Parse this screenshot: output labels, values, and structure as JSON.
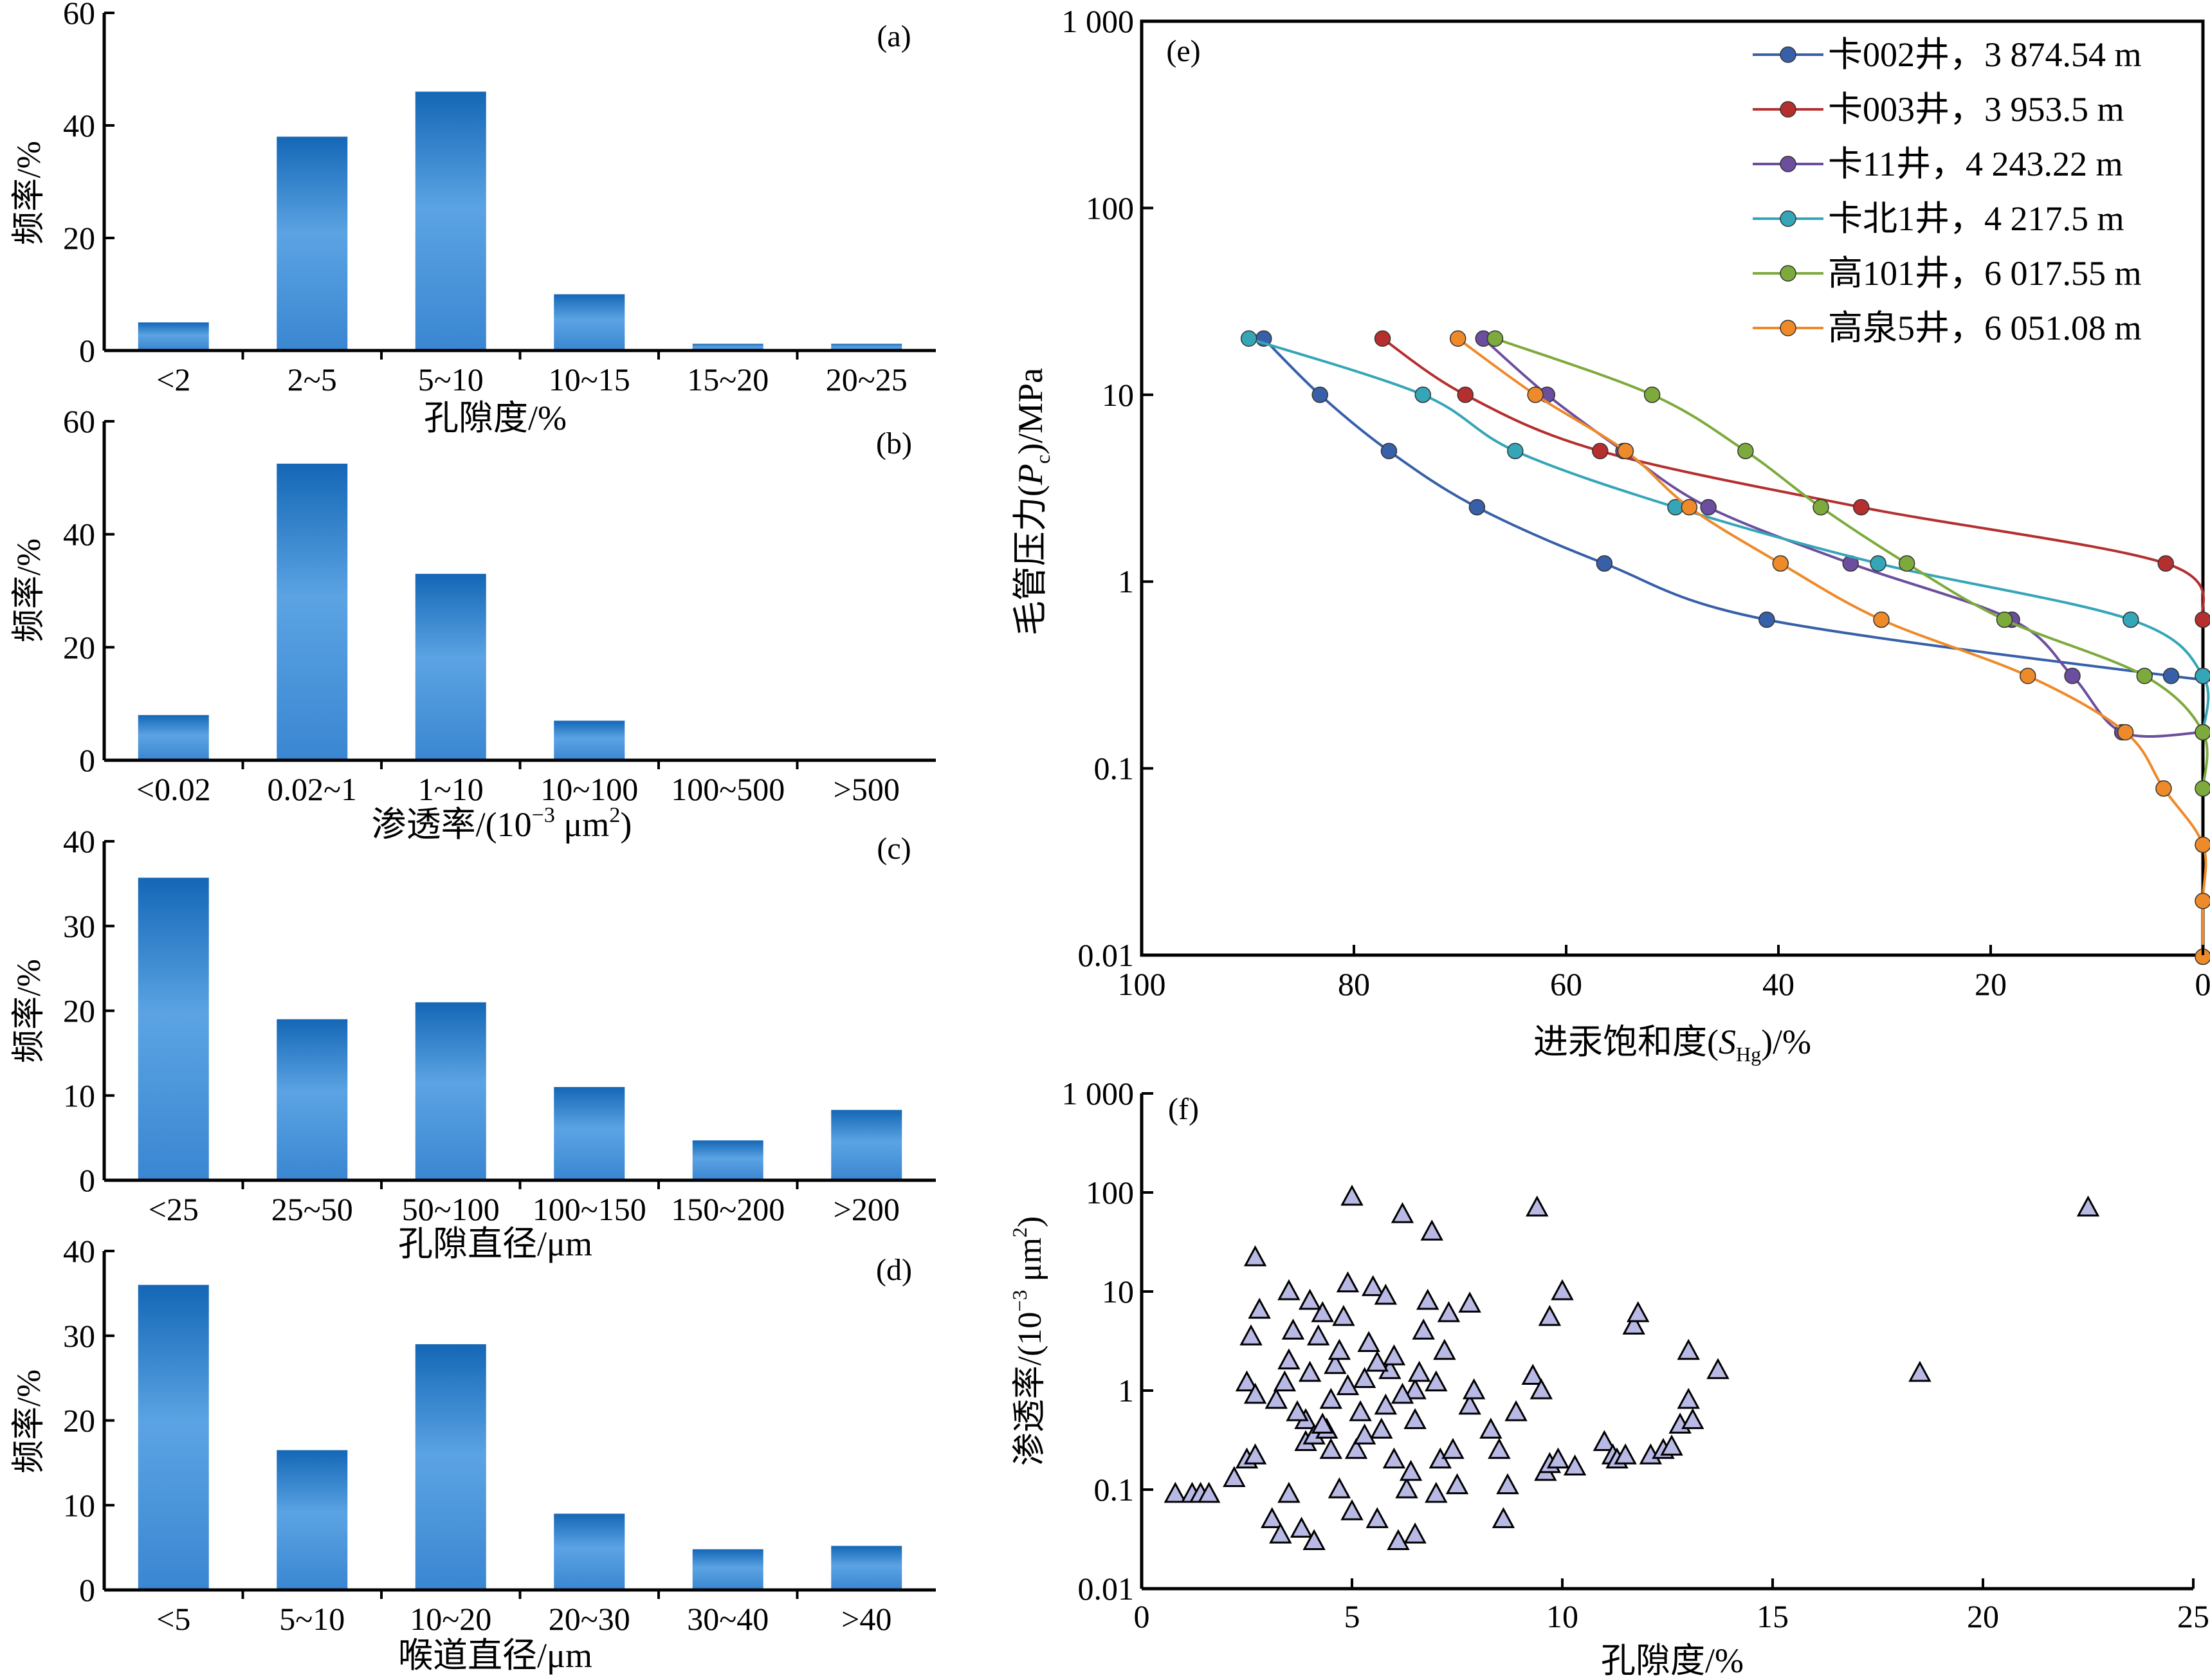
{
  "colors": {
    "bar_top": "#1467b6",
    "bar_mid": "#5ba3e3",
    "bar_bottom": "#3a86d1",
    "scatter_fill": "#b9b9e6",
    "series": [
      "#3760a8",
      "#b52f2f",
      "#6b4e9e",
      "#35a5b8",
      "#7daa3c",
      "#ee8a2a"
    ]
  },
  "chart_data": [
    {
      "id": "a",
      "type": "bar",
      "tag": "(a)",
      "categories": [
        "<2",
        "2~5",
        "5~10",
        "10~15",
        "15~20",
        "20~25"
      ],
      "values": [
        5,
        38,
        46,
        10,
        1.2,
        1.2
      ],
      "xlabel": "孔隙度/%",
      "ylabel": "频率/%",
      "ylim": [
        0,
        60
      ],
      "yticks": [
        "0",
        "20",
        "40",
        "60"
      ]
    },
    {
      "id": "b",
      "type": "bar",
      "tag": "(b)",
      "categories": [
        "<0.02",
        "0.02~1",
        "1~10",
        "10~100",
        "100~500",
        ">500"
      ],
      "values": [
        8,
        52.5,
        33,
        7,
        0,
        0
      ],
      "xlabel_main": "渗透率/(10",
      "xlabel_sup1": "−3",
      "xlabel_mid": " μm",
      "xlabel_sup2": "2",
      "xlabel_end": ")",
      "ylabel": "频率/%",
      "ylim": [
        0,
        60
      ],
      "yticks": [
        "0",
        "20",
        "40",
        "60"
      ]
    },
    {
      "id": "c",
      "type": "bar",
      "tag": "(c)",
      "categories": [
        "<25",
        "25~50",
        "50~100",
        "100~150",
        "150~200",
        ">200"
      ],
      "values": [
        35.7,
        19,
        21,
        11,
        4.7,
        8.3
      ],
      "xlabel": "孔隙直径/μm",
      "ylabel": "频率/%",
      "ylim": [
        0,
        40
      ],
      "yticks": [
        "0",
        "10",
        "20",
        "30",
        "40"
      ]
    },
    {
      "id": "d",
      "type": "bar",
      "tag": "(d)",
      "categories": [
        "<5",
        "5~10",
        "10~20",
        "20~30",
        "30~40",
        ">40"
      ],
      "values": [
        36,
        16.5,
        29,
        9,
        4.8,
        5.2
      ],
      "xlabel": "喉道直径/μm",
      "ylabel": "频率/%",
      "ylim": [
        0,
        40
      ],
      "yticks": [
        "0",
        "10",
        "20",
        "30",
        "40"
      ]
    },
    {
      "id": "e",
      "type": "line",
      "tag": "(e)",
      "x_reversed": true,
      "y_scale": "log",
      "xlim": [
        100,
        0
      ],
      "ylim": [
        0.01,
        1000
      ],
      "xticks": [
        "100",
        "80",
        "60",
        "40",
        "20",
        "0"
      ],
      "yticks": [
        "0.01",
        "0.1",
        "1",
        "10",
        "100",
        "1 000"
      ],
      "ylabel_main": "毛管压力(",
      "ylabel_var": "P",
      "ylabel_sub": "c",
      "ylabel_end": ")/MPa",
      "xlabel_main": "进汞饱和度(",
      "xlabel_var": "S",
      "xlabel_sub": "Hg",
      "xlabel_end": ")/%",
      "legend_position": "top-right",
      "series": [
        {
          "name": "卡002井，3 874.54 m",
          "x": [
            88.5,
            83.2,
            76.7,
            68.4,
            56.4,
            41.1,
            3.0,
            0
          ],
          "y": [
            20,
            10,
            5,
            2.5,
            1.25,
            0.625,
            0.3125,
            0.3125
          ]
        },
        {
          "name": "卡003井，3 953.5 m",
          "x": [
            77.3,
            69.5,
            56.8,
            32.2,
            3.5,
            0
          ],
          "y": [
            20,
            10,
            5,
            2.5,
            1.25,
            0.625
          ]
        },
        {
          "name": "卡11井，4 243.22 m",
          "x": [
            67.8,
            61.8,
            54.6,
            46.6,
            33.2,
            18.0,
            12.3,
            7.6,
            0
          ],
          "y": [
            20,
            10,
            5,
            2.5,
            1.25,
            0.625,
            0.3125,
            0.156,
            0.156
          ]
        },
        {
          "name": "卡北1井，4 217.5 m",
          "x": [
            89.9,
            73.5,
            64.8,
            49.7,
            30.6,
            6.8,
            0,
            0
          ],
          "y": [
            20,
            10,
            5,
            2.5,
            1.25,
            0.625,
            0.3125,
            0.156
          ]
        },
        {
          "name": "高101井，6 017.55 m",
          "x": [
            66.7,
            51.9,
            43.1,
            36.0,
            27.9,
            18.7,
            5.5,
            0,
            0
          ],
          "y": [
            20,
            10,
            5,
            2.5,
            1.25,
            0.625,
            0.3125,
            0.156,
            0.078
          ]
        },
        {
          "name": "高泉5井，6 051.08 m",
          "x": [
            70.2,
            62.9,
            54.4,
            48.4,
            39.8,
            30.3,
            16.5,
            7.3,
            3.7,
            0,
            0,
            0
          ],
          "y": [
            20,
            10,
            5,
            2.5,
            1.25,
            0.625,
            0.3125,
            0.156,
            0.078,
            0.039,
            0.0195,
            0.0098
          ]
        }
      ]
    },
    {
      "id": "f",
      "type": "scatter",
      "tag": "(f)",
      "y_scale": "log",
      "xlim": [
        0,
        25
      ],
      "ylim": [
        0.01,
        1000
      ],
      "xticks": [
        "0",
        "5",
        "10",
        "15",
        "20",
        "25"
      ],
      "yticks": [
        "0.01",
        "0.1",
        "1",
        "10",
        "100",
        "1 000"
      ],
      "xlabel": "孔隙度/%",
      "ylabel_main": "渗透率/(10",
      "ylabel_sup1": "−3",
      "ylabel_mid": " μm",
      "ylabel_sup2": "2",
      "ylabel_end": ")",
      "points": [
        [
          0.8,
          0.09
        ],
        [
          1.2,
          0.09
        ],
        [
          1.4,
          0.09
        ],
        [
          1.6,
          0.09
        ],
        [
          2.2,
          0.13
        ],
        [
          2.5,
          0.2
        ],
        [
          2.7,
          0.22
        ],
        [
          2.5,
          1.2
        ],
        [
          2.7,
          0.9
        ],
        [
          2.6,
          3.5
        ],
        [
          2.8,
          6.5
        ],
        [
          2.7,
          22
        ],
        [
          3.1,
          0.05
        ],
        [
          3.3,
          0.035
        ],
        [
          3.5,
          0.09
        ],
        [
          3.2,
          0.8
        ],
        [
          3.4,
          1.2
        ],
        [
          3.5,
          2.0
        ],
        [
          3.6,
          4.0
        ],
        [
          3.5,
          10
        ],
        [
          3.8,
          0.04
        ],
        [
          3.9,
          0.3
        ],
        [
          3.9,
          0.5
        ],
        [
          4.1,
          0.35
        ],
        [
          4.0,
          1.5
        ],
        [
          4.2,
          3.5
        ],
        [
          4.3,
          6.0
        ],
        [
          4.0,
          8.0
        ],
        [
          4.1,
          0.03
        ],
        [
          4.4,
          0.4
        ],
        [
          4.5,
          0.8
        ],
        [
          4.6,
          1.8
        ],
        [
          4.7,
          2.5
        ],
        [
          4.8,
          5.5
        ],
        [
          4.9,
          12
        ],
        [
          5.0,
          90
        ],
        [
          4.7,
          0.1
        ],
        [
          5.0,
          0.06
        ],
        [
          5.1,
          0.25
        ],
        [
          5.2,
          0.6
        ],
        [
          5.3,
          1.3
        ],
        [
          5.4,
          3.0
        ],
        [
          5.5,
          11
        ],
        [
          5.6,
          0.05
        ],
        [
          5.7,
          0.4
        ],
        [
          5.8,
          0.7
        ],
        [
          5.9,
          1.6
        ],
        [
          6.0,
          2.2
        ],
        [
          5.8,
          9.0
        ],
        [
          6.2,
          60
        ],
        [
          6.3,
          0.1
        ],
        [
          6.1,
          0.03
        ],
        [
          6.4,
          0.15
        ],
        [
          6.5,
          0.5
        ],
        [
          6.5,
          1.0
        ],
        [
          6.6,
          1.5
        ],
        [
          6.7,
          4.0
        ],
        [
          6.8,
          8.0
        ],
        [
          6.9,
          40
        ],
        [
          6.5,
          0.035
        ],
        [
          7.0,
          0.09
        ],
        [
          7.1,
          0.2
        ],
        [
          7.0,
          1.2
        ],
        [
          7.2,
          2.5
        ],
        [
          7.3,
          6.0
        ],
        [
          7.4,
          0.25
        ],
        [
          7.5,
          0.11
        ],
        [
          7.8,
          0.7
        ],
        [
          7.9,
          1.0
        ],
        [
          8.3,
          0.4
        ],
        [
          7.8,
          7.5
        ],
        [
          8.5,
          0.25
        ],
        [
          8.6,
          0.05
        ],
        [
          8.7,
          0.11
        ],
        [
          8.9,
          0.6
        ],
        [
          9.3,
          1.4
        ],
        [
          9.5,
          1.0
        ],
        [
          9.6,
          0.15
        ],
        [
          9.7,
          0.18
        ],
        [
          9.9,
          0.2
        ],
        [
          9.7,
          5.5
        ],
        [
          10.0,
          10
        ],
        [
          9.4,
          70
        ],
        [
          10.3,
          0.17
        ],
        [
          11.0,
          0.3
        ],
        [
          11.2,
          0.22
        ],
        [
          11.3,
          0.2
        ],
        [
          11.5,
          0.22
        ],
        [
          11.7,
          4.5
        ],
        [
          11.8,
          6.0
        ],
        [
          12.1,
          0.22
        ],
        [
          12.4,
          0.25
        ],
        [
          12.6,
          0.27
        ],
        [
          12.8,
          0.45
        ],
        [
          13.0,
          0.8
        ],
        [
          13.1,
          0.5
        ],
        [
          13.0,
          2.5
        ],
        [
          13.7,
          1.6
        ],
        [
          18.5,
          1.5
        ],
        [
          22.5,
          70
        ],
        [
          4.3,
          0.45
        ],
        [
          5.3,
          0.35
        ],
        [
          6.0,
          0.2
        ],
        [
          3.7,
          0.6
        ],
        [
          4.9,
          1.1
        ],
        [
          6.2,
          0.9
        ],
        [
          4.5,
          0.25
        ],
        [
          5.6,
          1.9
        ]
      ]
    }
  ]
}
